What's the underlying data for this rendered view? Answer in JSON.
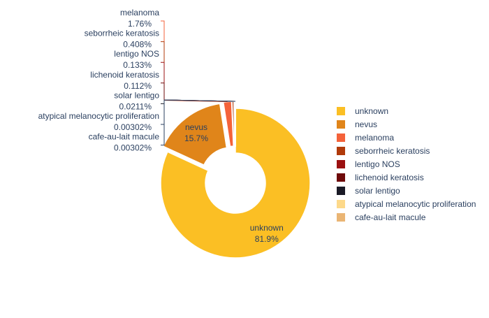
{
  "chart_data": {
    "type": "pie",
    "hole": true,
    "pulled_slices": [
      "nevus",
      "melanoma",
      "seborrheic keratosis",
      "lentigo NOS",
      "lichenoid keratosis",
      "solar lentigo",
      "atypical melanocytic proliferation",
      "cafe-au-lait macule"
    ],
    "legend_position": "right",
    "slices": [
      {
        "label": "unknown",
        "percent": 81.9,
        "percent_text": "81.9%",
        "color": "#fbbf24",
        "label_inside": true
      },
      {
        "label": "nevus",
        "percent": 15.7,
        "percent_text": "15.7%",
        "color": "#e0851a",
        "label_inside": true
      },
      {
        "label": "melanoma",
        "percent": 1.76,
        "percent_text": "1.76%",
        "color": "#f4623a",
        "label_inside": false
      },
      {
        "label": "seborrheic keratosis",
        "percent": 0.408,
        "percent_text": "0.408%",
        "color": "#b03a0a",
        "label_inside": false
      },
      {
        "label": "lentigo NOS",
        "percent": 0.133,
        "percent_text": "0.133%",
        "color": "#9b1010",
        "label_inside": false
      },
      {
        "label": "lichenoid keratosis",
        "percent": 0.112,
        "percent_text": "0.112%",
        "color": "#6e0a0a",
        "label_inside": false
      },
      {
        "label": "solar lentigo",
        "percent": 0.0211,
        "percent_text": "0.0211%",
        "color": "#1a1a26",
        "label_inside": false
      },
      {
        "label": "atypical melanocytic proliferation",
        "percent": 0.00302,
        "percent_text": "0.00302%",
        "color": "#fdd98a",
        "label_inside": false
      },
      {
        "label": "cafe-au-lait macule",
        "percent": 0.00302,
        "percent_text": "0.00302%",
        "color": "#eab574",
        "label_inside": false
      }
    ]
  }
}
